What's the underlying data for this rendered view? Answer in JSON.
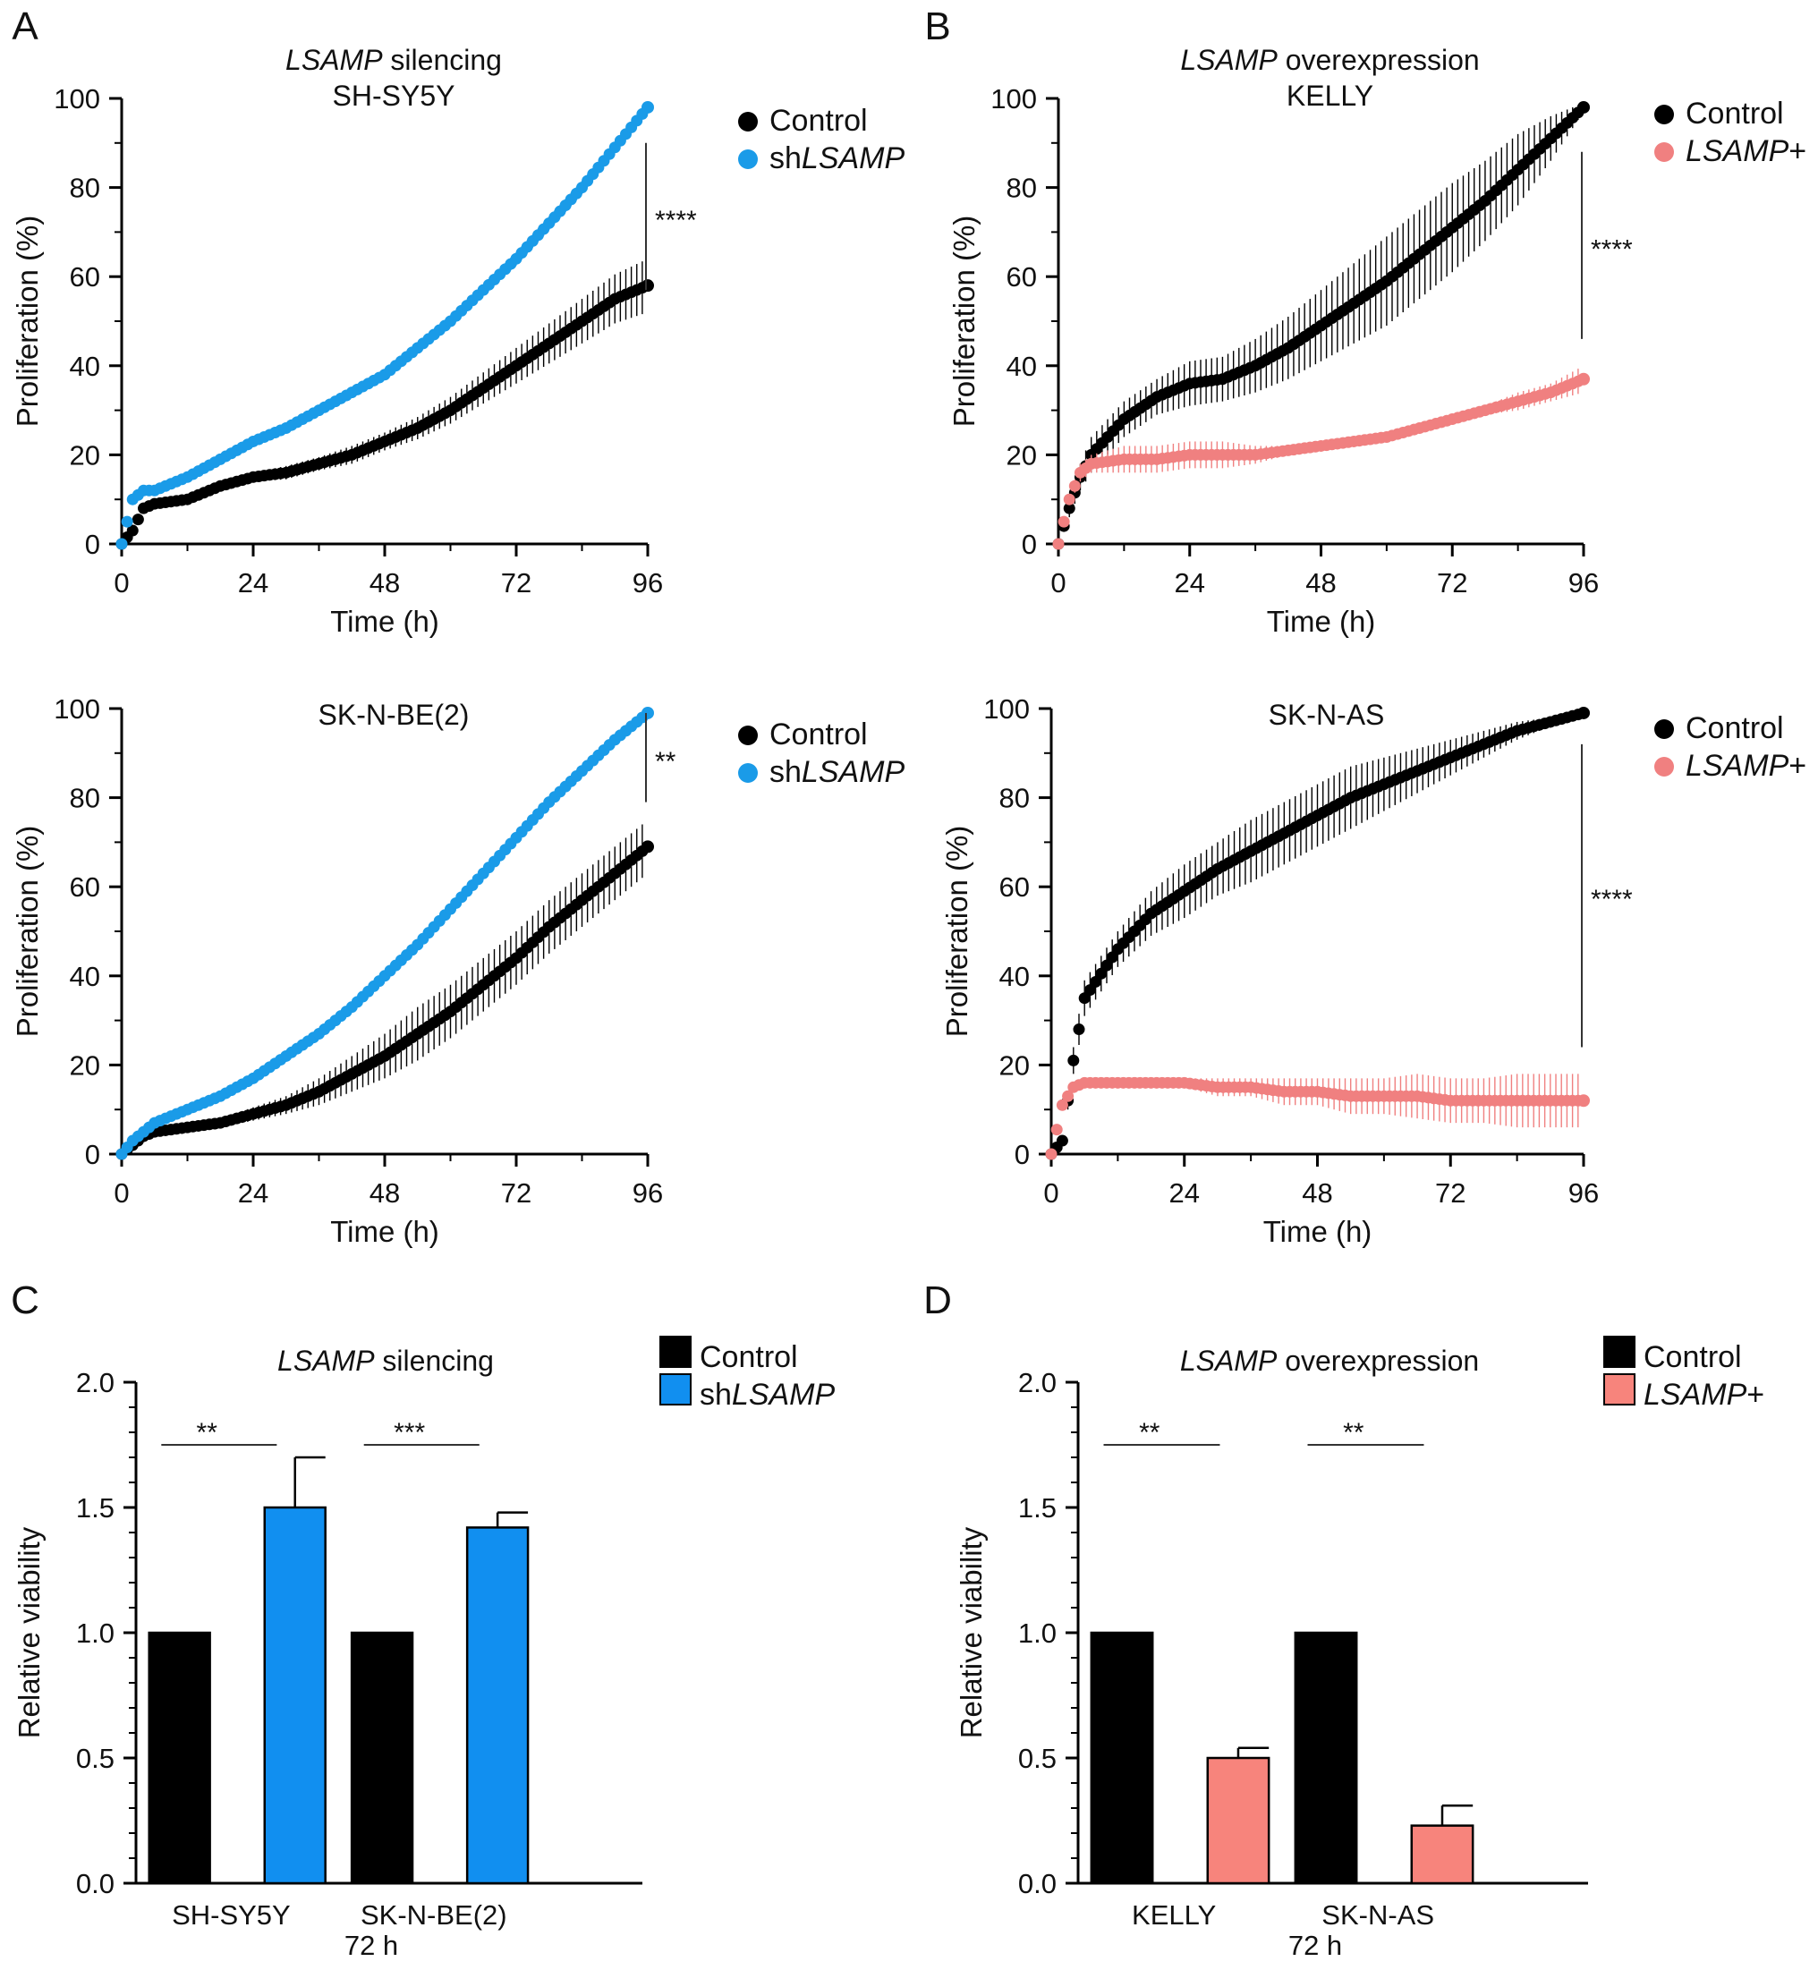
{
  "figure": {
    "panel_letters": [
      "A",
      "B",
      "C",
      "D"
    ],
    "colors": {
      "control": "#000000",
      "silencing": "#1a9be8",
      "overexpression": "#f08080",
      "bar_silencing": "#118ff0",
      "bar_overexpression": "#f7847c"
    }
  },
  "chart_data": [
    {
      "id": "A-top",
      "type": "line",
      "title_italic": "LSAMP",
      "title_rest": " silencing",
      "subtitle": "SH-SY5Y",
      "xlabel": "Time (h)",
      "ylabel": "Proliferation (%)",
      "xlim": [
        0,
        96
      ],
      "ylim": [
        0,
        100
      ],
      "xticks": [
        0,
        24,
        48,
        72,
        96
      ],
      "yticks": [
        0,
        20,
        40,
        60,
        80,
        100
      ],
      "legend": [
        {
          "prefix": "Control",
          "italic": ""
        },
        {
          "prefix": "sh",
          "italic": "LSAMP"
        }
      ],
      "significance": "****",
      "significance_range": [
        57,
        90
      ],
      "series": [
        {
          "name": "Control",
          "color_key": "control",
          "x": [
            0,
            2,
            4,
            6,
            12,
            18,
            24,
            30,
            36,
            42,
            48,
            54,
            60,
            66,
            72,
            78,
            84,
            90,
            96
          ],
          "y": [
            0,
            3,
            8,
            9,
            10,
            13,
            15,
            16,
            18,
            20,
            23,
            26,
            30,
            35,
            40,
            45,
            50,
            55,
            58
          ],
          "err": [
            0,
            0.5,
            1,
            1,
            1,
            1,
            1,
            1.5,
            1.5,
            2,
            2,
            2.5,
            3,
            3.5,
            4,
            4.5,
            5,
            5.5,
            6
          ]
        },
        {
          "name": "shLSAMP",
          "color_key": "silencing",
          "x": [
            0,
            2,
            4,
            6,
            12,
            18,
            24,
            30,
            36,
            42,
            48,
            54,
            60,
            66,
            72,
            78,
            84,
            90,
            96
          ],
          "y": [
            0,
            10,
            12,
            12,
            15,
            19,
            23,
            26,
            30,
            34,
            38,
            44,
            50,
            57,
            64,
            72,
            80,
            89,
            98
          ],
          "err": [
            0,
            0.5,
            0.5,
            0.5,
            0.5,
            0.5,
            0.5,
            0.5,
            0.5,
            1,
            1,
            1,
            1,
            1,
            1.5,
            1.5,
            1.5,
            1,
            0.5
          ]
        }
      ]
    },
    {
      "id": "B-top",
      "type": "line",
      "title_italic": "LSAMP",
      "title_rest": " overexpression",
      "subtitle": "KELLY",
      "xlabel": "Time (h)",
      "ylabel": "Proliferation (%)",
      "xlim": [
        0,
        96
      ],
      "ylim": [
        0,
        100
      ],
      "xticks": [
        0,
        24,
        48,
        72,
        96
      ],
      "yticks": [
        0,
        20,
        40,
        60,
        80,
        100
      ],
      "legend": [
        {
          "prefix": "Control",
          "italic": ""
        },
        {
          "prefix": "",
          "italic": "LSAMP",
          "suffix": "+"
        }
      ],
      "significance": "****",
      "significance_range": [
        46,
        88
      ],
      "series": [
        {
          "name": "Control",
          "color_key": "control",
          "x": [
            0,
            2,
            4,
            6,
            12,
            18,
            24,
            30,
            36,
            42,
            48,
            54,
            60,
            66,
            72,
            78,
            84,
            90,
            96
          ],
          "y": [
            0,
            8,
            15,
            20,
            28,
            33,
            36,
            37,
            40,
            44,
            49,
            54,
            59,
            65,
            71,
            77,
            84,
            91,
            98
          ],
          "err": [
            0,
            2,
            3,
            4,
            4,
            4,
            5,
            5,
            6,
            7,
            8,
            9,
            10,
            10,
            10,
            9,
            8,
            5,
            1
          ]
        },
        {
          "name": "LSAMP+",
          "color_key": "overexpression",
          "x": [
            0,
            2,
            4,
            6,
            12,
            18,
            24,
            30,
            36,
            42,
            48,
            54,
            60,
            66,
            72,
            78,
            84,
            90,
            96
          ],
          "y": [
            0,
            10,
            16,
            18,
            19,
            19,
            20,
            20,
            20,
            21,
            22,
            23,
            24,
            26,
            28,
            30,
            32,
            34,
            37
          ],
          "err": [
            0,
            1,
            2,
            2,
            3,
            3,
            3,
            3,
            2,
            1,
            1,
            1,
            1,
            1,
            1,
            1,
            2,
            2,
            3
          ]
        }
      ]
    },
    {
      "id": "A-bottom",
      "type": "line",
      "title_italic": "",
      "title_rest": "SK-N-BE(2)",
      "subtitle": "",
      "xlabel": "Time (h)",
      "ylabel": "Proliferation (%)",
      "xlim": [
        0,
        96
      ],
      "ylim": [
        0,
        100
      ],
      "xticks": [
        0,
        24,
        48,
        72,
        96
      ],
      "yticks": [
        0,
        20,
        40,
        60,
        80,
        100
      ],
      "legend": [
        {
          "prefix": "Control",
          "italic": ""
        },
        {
          "prefix": "sh",
          "italic": "LSAMP"
        }
      ],
      "significance": "**",
      "significance_range": [
        79,
        99
      ],
      "series": [
        {
          "name": "Control",
          "color_key": "control",
          "x": [
            0,
            2,
            4,
            6,
            12,
            18,
            24,
            30,
            36,
            42,
            48,
            54,
            60,
            66,
            72,
            78,
            84,
            90,
            96
          ],
          "y": [
            0,
            2,
            4,
            5,
            6,
            7,
            9,
            11,
            14,
            18,
            22,
            27,
            32,
            38,
            44,
            51,
            57,
            63,
            69
          ],
          "err": [
            0,
            0.5,
            0.5,
            0.5,
            1,
            1,
            1.5,
            2,
            3,
            4,
            5,
            6,
            6,
            6,
            6,
            6,
            6,
            6,
            6
          ]
        },
        {
          "name": "shLSAMP",
          "color_key": "silencing",
          "x": [
            0,
            2,
            4,
            6,
            12,
            18,
            24,
            30,
            36,
            42,
            48,
            54,
            60,
            66,
            72,
            78,
            84,
            90,
            96
          ],
          "y": [
            0,
            3,
            5,
            7,
            10,
            13,
            17,
            22,
            27,
            33,
            40,
            47,
            55,
            63,
            71,
            79,
            86,
            93,
            99
          ],
          "err": [
            0,
            0.5,
            0.5,
            0.5,
            0.5,
            0.5,
            1,
            1,
            1,
            1,
            1,
            1,
            1,
            1,
            1,
            1,
            1,
            1,
            0.5
          ]
        }
      ]
    },
    {
      "id": "B-bottom",
      "type": "line",
      "title_italic": "",
      "title_rest": "SK-N-AS",
      "subtitle": "",
      "xlabel": "Time (h)",
      "ylabel": "Proliferation (%)",
      "xlim": [
        0,
        96
      ],
      "ylim": [
        0,
        100
      ],
      "xticks": [
        0,
        24,
        48,
        72,
        96
      ],
      "yticks": [
        0,
        20,
        40,
        60,
        80,
        100
      ],
      "legend": [
        {
          "prefix": "Control",
          "italic": ""
        },
        {
          "prefix": "",
          "italic": "LSAMP",
          "suffix": "+"
        }
      ],
      "significance": "****",
      "significance_range": [
        24,
        92
      ],
      "series": [
        {
          "name": "Control",
          "color_key": "control",
          "x": [
            0,
            2,
            4,
            6,
            12,
            18,
            24,
            30,
            36,
            42,
            48,
            54,
            60,
            66,
            72,
            78,
            84,
            90,
            96
          ],
          "y": [
            0,
            3,
            21,
            35,
            46,
            54,
            59,
            64,
            68,
            72,
            76,
            80,
            83,
            86,
            89,
            92,
            95,
            97,
            99
          ],
          "err": [
            0,
            1,
            3,
            4,
            4,
            5,
            6,
            6,
            7,
            7,
            7,
            7,
            6,
            5,
            4,
            3,
            2,
            1,
            0.5
          ]
        },
        {
          "name": "LSAMP+",
          "color_key": "overexpression",
          "x": [
            0,
            2,
            4,
            6,
            12,
            18,
            24,
            30,
            36,
            42,
            48,
            54,
            60,
            66,
            72,
            78,
            84,
            90,
            96
          ],
          "y": [
            0,
            11,
            15,
            16,
            16,
            16,
            16,
            15,
            15,
            14,
            14,
            13,
            13,
            13,
            12,
            12,
            12,
            12,
            12
          ],
          "err": [
            0,
            1,
            1,
            1,
            1,
            1,
            1,
            2,
            2,
            3,
            3,
            4,
            4,
            5,
            5,
            5,
            6,
            6,
            6
          ]
        }
      ]
    },
    {
      "id": "C",
      "type": "bar",
      "title_italic": "LSAMP",
      "title_rest": " silencing",
      "ylabel": "Relative viability",
      "xlabel": "72 h",
      "ylim": [
        0,
        2.0
      ],
      "yticks": [
        "0.0",
        "0.5",
        "1.0",
        "1.5",
        "2.0"
      ],
      "categories": [
        "SH-SY5Y",
        "SK-N-BE(2)"
      ],
      "legend": [
        {
          "prefix": "Control",
          "italic": ""
        },
        {
          "prefix": "sh",
          "italic": "LSAMP"
        }
      ],
      "series": [
        {
          "name": "Control",
          "color_key": "control",
          "values": [
            1.0,
            1.0
          ],
          "err": [
            0,
            0
          ]
        },
        {
          "name": "shLSAMP",
          "color_key": "bar_silencing",
          "values": [
            1.5,
            1.42
          ],
          "err": [
            0.2,
            0.06
          ]
        }
      ],
      "significance": [
        "**",
        "***"
      ]
    },
    {
      "id": "D",
      "type": "bar",
      "title_italic": "LSAMP",
      "title_rest": " overexpression",
      "ylabel": "Relative viability",
      "xlabel": "72 h",
      "ylim": [
        0,
        2.0
      ],
      "yticks": [
        "0.0",
        "0.5",
        "1.0",
        "1.5",
        "2.0"
      ],
      "categories": [
        "KELLY",
        "SK-N-AS"
      ],
      "legend": [
        {
          "prefix": "Control",
          "italic": ""
        },
        {
          "prefix": "",
          "italic": "LSAMP",
          "suffix": "+"
        }
      ],
      "series": [
        {
          "name": "Control",
          "color_key": "control",
          "values": [
            1.0,
            1.0
          ],
          "err": [
            0,
            0
          ]
        },
        {
          "name": "LSAMP+",
          "color_key": "bar_overexpression",
          "values": [
            0.5,
            0.23
          ],
          "err": [
            0.04,
            0.08
          ]
        }
      ],
      "significance": [
        "**",
        "**"
      ]
    }
  ]
}
